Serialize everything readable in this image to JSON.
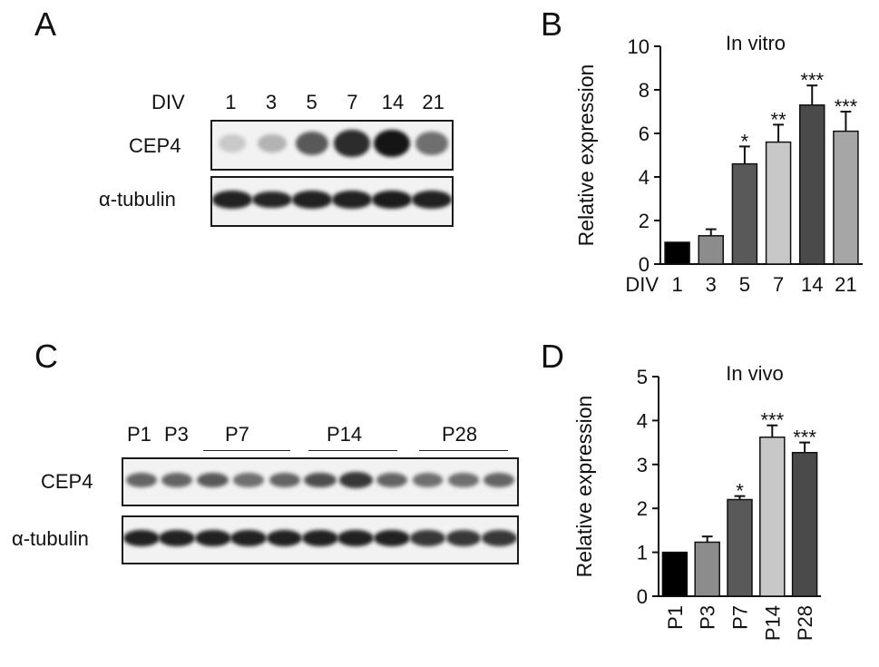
{
  "panels": {
    "a": "A",
    "b": "B",
    "c": "C",
    "d": "D"
  },
  "blot_a": {
    "header_label": "DIV",
    "lanes": [
      "1",
      "3",
      "5",
      "7",
      "14",
      "21"
    ],
    "row_labels": [
      "CEP4",
      "α-tubulin"
    ],
    "cep4_intensity": [
      0.15,
      0.25,
      0.65,
      0.85,
      0.95,
      0.55
    ],
    "tubulin_intensity": [
      0.9,
      0.88,
      0.9,
      0.9,
      0.92,
      0.9
    ]
  },
  "blot_c": {
    "single_lanes": [
      "P1",
      "P3"
    ],
    "groups": [
      "P7",
      "P14",
      "P28"
    ],
    "row_labels": [
      "CEP4",
      "α-tubulin"
    ],
    "cep4_intensity": [
      0.6,
      0.6,
      0.65,
      0.55,
      0.6,
      0.7,
      0.8,
      0.6,
      0.55,
      0.55,
      0.6
    ],
    "tubulin_intensity": [
      0.9,
      0.9,
      0.9,
      0.9,
      0.9,
      0.9,
      0.9,
      0.9,
      0.8,
      0.8,
      0.8
    ]
  },
  "chart_data": [
    {
      "type": "bar",
      "title": "In vitro",
      "ylabel": "Relative expression",
      "xlabel_prefix": "DIV",
      "categories": [
        "1",
        "3",
        "5",
        "7",
        "14",
        "21"
      ],
      "values": [
        1.0,
        1.3,
        4.6,
        5.6,
        7.3,
        6.1
      ],
      "errors": [
        0,
        0.3,
        0.8,
        0.8,
        0.9,
        0.9
      ],
      "significance": [
        "",
        "",
        "*",
        "**",
        "***",
        "***"
      ],
      "colors": [
        "#000000",
        "#8c8c8c",
        "#595959",
        "#c8c8c8",
        "#4a4a4a",
        "#a6a6a6"
      ],
      "ylim": [
        0,
        10
      ],
      "yticks": [
        0,
        2,
        4,
        6,
        8,
        10
      ]
    },
    {
      "type": "bar",
      "title": "In vivo",
      "ylabel": "Relative expression",
      "categories": [
        "P1",
        "P3",
        "P7",
        "P14",
        "P28"
      ],
      "values": [
        1.0,
        1.23,
        2.2,
        3.62,
        3.27
      ],
      "errors": [
        0,
        0.13,
        0.08,
        0.27,
        0.23
      ],
      "significance": [
        "",
        "",
        "*",
        "***",
        "***"
      ],
      "colors": [
        "#000000",
        "#8c8c8c",
        "#595959",
        "#c8c8c8",
        "#4a4a4a"
      ],
      "ylim": [
        0,
        5
      ],
      "yticks": [
        0,
        1,
        2,
        3,
        4,
        5
      ]
    }
  ]
}
